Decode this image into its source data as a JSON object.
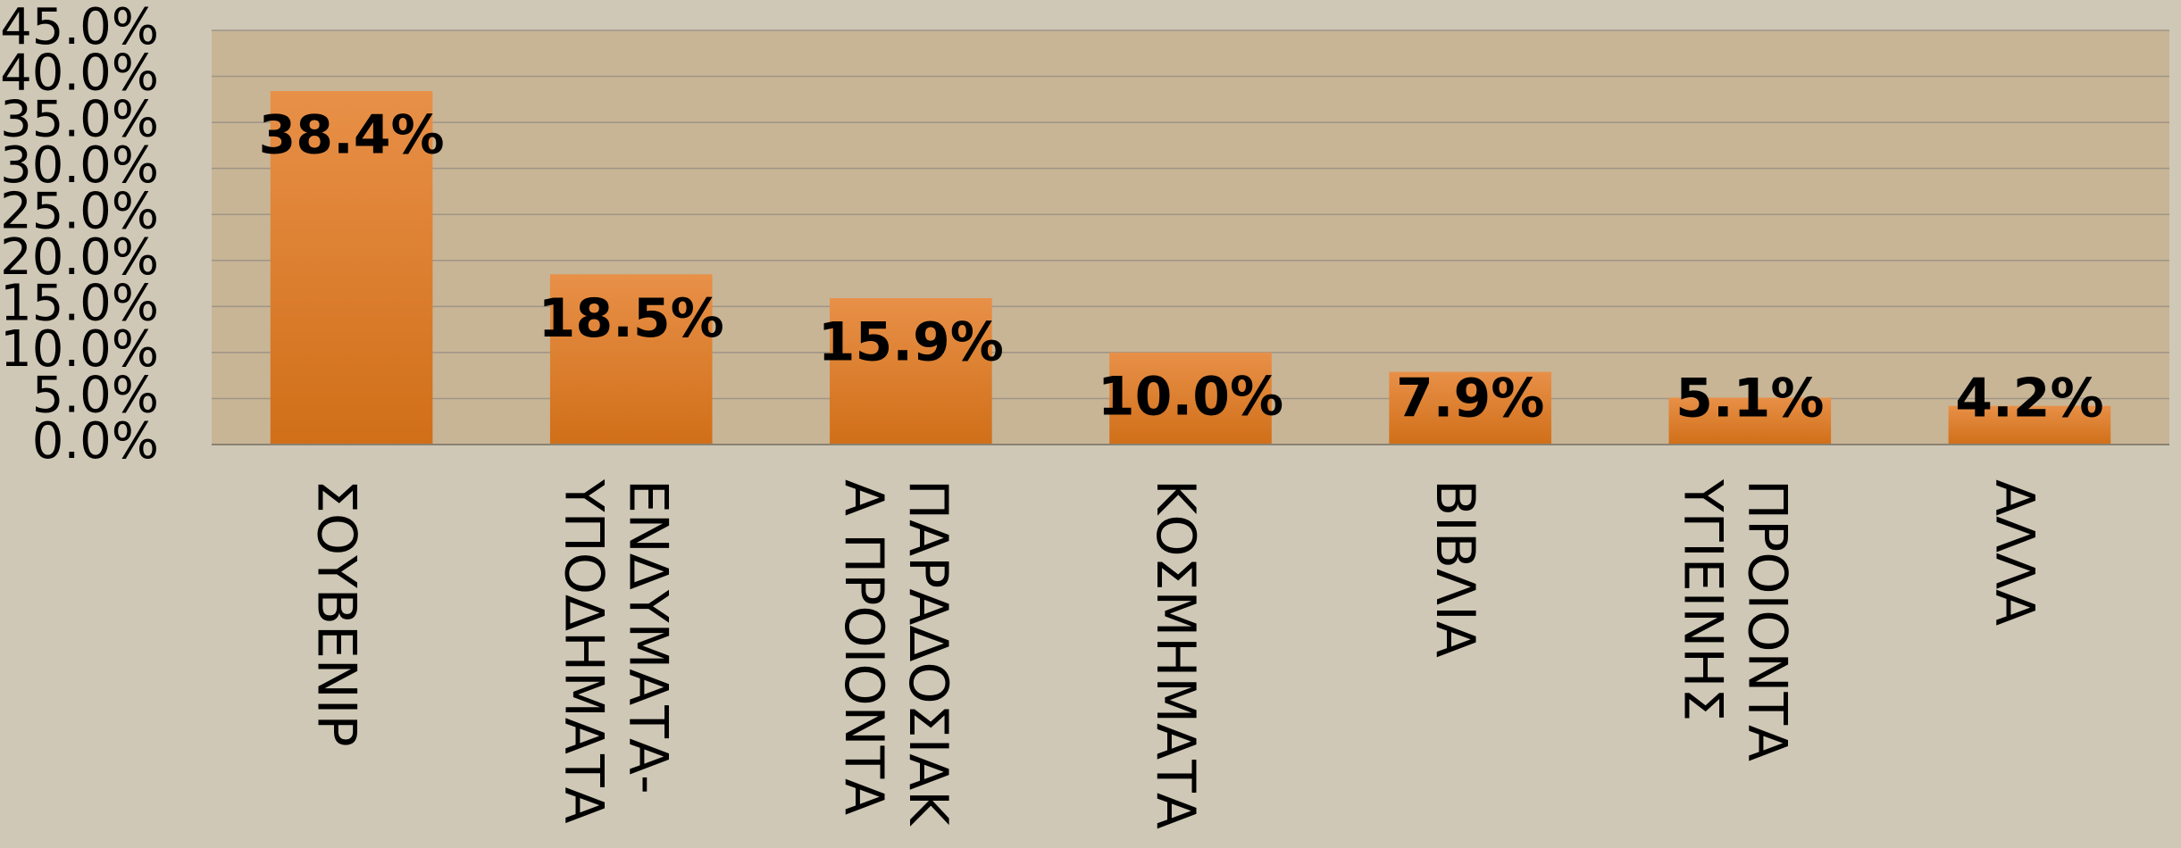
{
  "chart_data": {
    "type": "bar",
    "categories": [
      "ΣΟΥΒΕΝΙΡ",
      "ΕΝΔΥΜΑΤΑ-\nΥΠΟΔΗΜΑΤΑ",
      "ΠΑΡΑΔΟΣΙΑΚ\nΑ ΠΡΟΙΟΝΤΑ",
      "ΚΟΣΜΗΜΑΤΑ",
      "ΒΙΒΛΙΑ",
      "ΠΡΟΙΟΝΤΑ\nΥΓΙΕΙΝΗΣ",
      "ΑΛΛΑ"
    ],
    "values": [
      38.4,
      18.5,
      15.9,
      10.0,
      7.9,
      5.1,
      4.2
    ],
    "value_labels": [
      "38.4%",
      "18.5%",
      "15.9%",
      "10.0%",
      "7.9%",
      "5.1%",
      "4.2%"
    ],
    "color": "#e08838",
    "ylim": [
      0,
      45
    ],
    "yticks": [
      {
        "value": 0,
        "label": "0.0%"
      },
      {
        "value": 5,
        "label": "5.0%"
      },
      {
        "value": 10,
        "label": "10.0%"
      },
      {
        "value": 15,
        "label": "15.0%"
      },
      {
        "value": 20,
        "label": "20.0%"
      },
      {
        "value": 25,
        "label": "25.0%"
      },
      {
        "value": 30,
        "label": "30.0%"
      },
      {
        "value": 35,
        "label": "35.0%"
      },
      {
        "value": 40,
        "label": "40.0%"
      },
      {
        "value": 45,
        "label": "45.0%"
      }
    ],
    "grid": true
  }
}
